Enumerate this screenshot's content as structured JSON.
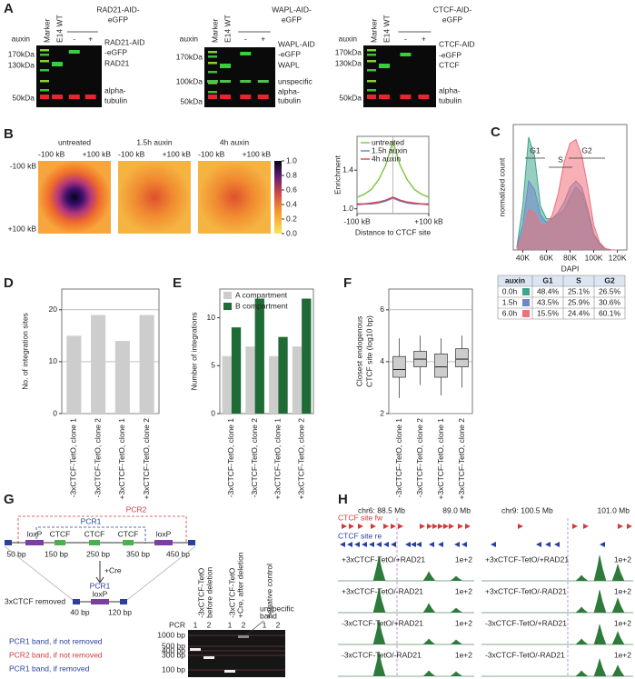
{
  "panel_labels": [
    "A",
    "B",
    "C",
    "D",
    "E",
    "F",
    "G",
    "H"
  ],
  "western_blots": {
    "lanes": [
      "Marker",
      "E14 WT"
    ],
    "auxin": "auxin",
    "treatments": [
      "-",
      "+"
    ],
    "blots": [
      {
        "title": [
          "RAD21-AID-",
          "eGFP"
        ],
        "markers": [
          "170kDa",
          "130kDa",
          "50kDa"
        ],
        "bands": [
          "RAD21-AID",
          "-eGFP",
          "RAD21",
          "alpha-",
          "tubulin"
        ]
      },
      {
        "title": [
          "WAPL-AID-",
          "eGFP"
        ],
        "markers": [
          "170kDa",
          "100kDa",
          "50kDa"
        ],
        "bands": [
          "WAPL-AID",
          "-eGFP",
          "WAPL",
          "unspecific",
          "alpha-",
          "tubulin"
        ]
      },
      {
        "title": [
          "CTCF-AID-",
          "eGFP"
        ],
        "markers": [
          "170kDa",
          "130kDa",
          "50kDa"
        ],
        "bands": [
          "CTCF-AID",
          "-eGFP",
          "CTCF",
          "alpha-",
          "tubulin"
        ]
      }
    ]
  },
  "heatmaps": {
    "titles": [
      "untreated",
      "1.5h auxin",
      "4h auxin"
    ],
    "axis_labels": [
      "-100 kB",
      "+100 kB"
    ],
    "colorbar": {
      "range": [
        0,
        1
      ],
      "ticks": [
        {
          "value": 0,
          "label": "0.0"
        },
        {
          "value": 0.2,
          "label": "0.2"
        },
        {
          "value": 0.4,
          "label": "0.4"
        },
        {
          "value": 0.6,
          "label": "0.6"
        },
        {
          "value": 0.8,
          "label": "0.8"
        },
        {
          "value": 1,
          "label": "1.0"
        }
      ]
    }
  },
  "chart_data": [
    {
      "type": "line",
      "x_label": "Distance to CTCF site",
      "y_label": "Enrichment",
      "x": [
        -100,
        -80,
        -60,
        -40,
        -20,
        0,
        20,
        40,
        60,
        80,
        100
      ],
      "xlim": [
        -100,
        100
      ],
      "xticks": [
        {
          "value": -100,
          "label": "-100 kB"
        },
        {
          "value": 100,
          "label": "+100 kB"
        }
      ],
      "ylim": [
        0.95,
        1.75
      ],
      "yticks": [
        {
          "value": 1,
          "label": "1.0"
        },
        {
          "value": 1.4,
          "label": "1.4"
        }
      ],
      "series": [
        {
          "name": "untreated",
          "color": "#7dc242",
          "values": [
            1.12,
            1.15,
            1.2,
            1.3,
            1.45,
            1.7,
            1.45,
            1.3,
            1.2,
            1.15,
            1.12
          ]
        },
        {
          "name": "1.5h auxin",
          "color": "#6a7fd0",
          "values": [
            1.04,
            1.05,
            1.05,
            1.06,
            1.08,
            1.11,
            1.08,
            1.06,
            1.05,
            1.05,
            1.04
          ]
        },
        {
          "name": "4h auxin",
          "color": "#d9434b",
          "values": [
            1.05,
            1.05,
            1.06,
            1.07,
            1.09,
            1.12,
            1.09,
            1.07,
            1.06,
            1.05,
            1.05
          ]
        }
      ]
    },
    {
      "type": "area",
      "x_label": "DAPI",
      "y_label": "normalized count",
      "annotations": [
        "G1",
        "S",
        "G2"
      ],
      "x": [
        35000,
        40000,
        45000,
        50000,
        55000,
        60000,
        65000,
        70000,
        75000,
        80000,
        85000,
        90000,
        95000,
        100000,
        105000,
        110000,
        115000,
        120000
      ],
      "xlim": [
        32000,
        128000
      ],
      "xticks": [
        {
          "value": 40000,
          "label": "40K"
        },
        {
          "value": 60000,
          "label": "60K"
        },
        {
          "value": 80000,
          "label": "80K"
        },
        {
          "value": 100000,
          "label": "100K"
        },
        {
          "value": 120000,
          "label": "120K"
        }
      ],
      "ylim": [
        0,
        1
      ],
      "series": [
        {
          "name": "0.0h",
          "color": "#3fa58a",
          "values": [
            0.02,
            0.35,
            0.9,
            0.75,
            0.35,
            0.25,
            0.25,
            0.28,
            0.32,
            0.42,
            0.5,
            0.45,
            0.3,
            0.12,
            0.04,
            0.01,
            0,
            0
          ]
        },
        {
          "name": "1.5h",
          "color": "#6f86c9",
          "values": [
            0.02,
            0.2,
            0.55,
            0.48,
            0.28,
            0.22,
            0.25,
            0.3,
            0.38,
            0.5,
            0.55,
            0.5,
            0.33,
            0.13,
            0.05,
            0.01,
            0,
            0
          ]
        },
        {
          "name": "6.0h",
          "color": "#ef6f7a",
          "values": [
            0.01,
            0.12,
            0.32,
            0.3,
            0.2,
            0.2,
            0.28,
            0.45,
            0.7,
            0.85,
            0.88,
            0.75,
            0.5,
            0.2,
            0.06,
            0.01,
            0,
            0
          ]
        }
      ]
    },
    {
      "type": "bar",
      "y_label": "No. of integration sites",
      "categories": [
        "-3xCTCF-TetO, clone 1",
        "-3xCTCF-TetO, clone 2",
        "+3xCTCF-TetO, clone 1",
        "+3xCTCF-TetO, clone 2"
      ],
      "values": [
        15,
        19,
        14,
        19
      ],
      "color": "#cdcdcd",
      "ylim": [
        0,
        24
      ],
      "yticks": [
        0,
        10,
        20
      ],
      "grid": true
    },
    {
      "type": "grouped_bar",
      "y_label": "Number of integrations",
      "categories": [
        "-3xCTCF-TetO, clone 1",
        "-3xCTCF-TetO, clone 2",
        "+3xCTCF-TetO, clone 1",
        "+3xCTCF-TetO, clone 2"
      ],
      "series": [
        {
          "name": "A compartment",
          "color": "#cdcdcd",
          "values": [
            6,
            7,
            6,
            7
          ]
        },
        {
          "name": "B compartment",
          "color": "#1f6b36",
          "values": [
            9,
            12,
            8,
            12
          ]
        }
      ],
      "ylim": [
        0,
        13
      ],
      "yticks": [
        0,
        5,
        10
      ],
      "legend": "top-left"
    },
    {
      "type": "box",
      "y_label": [
        "Closest endogenous",
        "CTCF site (log10 bp)"
      ],
      "categories": [
        "-3xCTCF-TetO, clone 1",
        "-3xCTCF-TetO, clone 2",
        "+3xCTCF-TetO, clone 1",
        "+3xCTCF-TetO, clone 2"
      ],
      "whisker_low": [
        2.6,
        3.1,
        2.7,
        3.0
      ],
      "q1": [
        3.4,
        3.8,
        3.4,
        3.8
      ],
      "median": [
        3.7,
        4.1,
        3.8,
        4.1
      ],
      "q3": [
        4.2,
        4.4,
        4.3,
        4.5
      ],
      "whisker_high": [
        4.9,
        5.0,
        4.9,
        5.0
      ],
      "color": "#cdcdcd",
      "ylim": [
        2,
        6.8
      ],
      "yticks": [
        2,
        4,
        6
      ],
      "grid": true
    }
  ],
  "cell_cycle_table": {
    "header": [
      "auxin",
      "G1",
      "S",
      "G2"
    ],
    "rows": [
      [
        "0.0h",
        "48.4%",
        "25.1%",
        "26.5%"
      ],
      [
        "1.5h",
        "43.5%",
        "25.9%",
        "30.6%"
      ],
      [
        "6.0h",
        "15.5%",
        "24.4%",
        "60.1%"
      ]
    ]
  },
  "deletion_diagram": {
    "pcr_labels": [
      "PCR2",
      "PCR1"
    ],
    "elements": [
      "loxP",
      "CTCF",
      "CTCF",
      "CTCF",
      "loxP"
    ],
    "positions": [
      "50 bp",
      "150 bp",
      "250 bp",
      "350 bp",
      "450 bp"
    ],
    "step": "+Cre",
    "result": {
      "title": "3xCTCF removed",
      "pcr": "PCR1",
      "element": "loxP",
      "positions": [
        "40 bp",
        "120 bp"
      ]
    },
    "legend": [
      "PCR1 band, if not removed",
      "PCR2 band, if not removed",
      "PCR1 band, if removed"
    ]
  },
  "gel": {
    "lanes": [
      [
        "-3xCTCF-TetO",
        "before deletion"
      ],
      [
        "-3xCTCF-TetO",
        "+Cre, after deletion"
      ],
      [
        "negative control"
      ]
    ],
    "pcr": "PCR",
    "reactions": [
      "1",
      "2"
    ],
    "ladder": [
      "1000 bp",
      "500 bp",
      "400 bp",
      "300 bp",
      "100 bp"
    ],
    "annotation": [
      "unspecific",
      "band"
    ]
  },
  "tracks": {
    "regions": [
      {
        "start": "chr6: 88.5 Mb",
        "end": "89.0 Mb"
      },
      {
        "start": "chr9: 100.5 Mb",
        "end": "101.0 Mb"
      }
    ],
    "motif_tracks": [
      "CTCF site fw",
      "CTCF site re"
    ],
    "samples": [
      "+3xCTCF-TetO/+RAD21",
      "+3xCTCF-TetO/-RAD21",
      "-3xCTCF-TetO/+RAD21",
      "-3xCTCF-TetO/-RAD21"
    ],
    "scale": "1e+2"
  }
}
